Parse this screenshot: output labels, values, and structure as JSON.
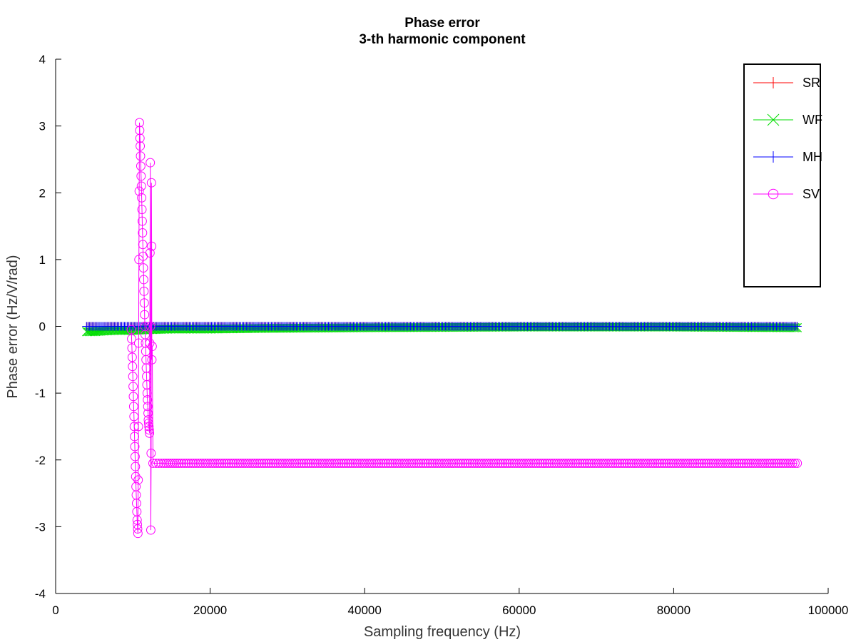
{
  "chart_data": {
    "type": "line",
    "title": "Phase error",
    "subtitle": "3-th harmonic component",
    "xlabel": "Sampling frequency (Hz)",
    "ylabel": "Phase error (Hz/V/rad)",
    "xlim": [
      0,
      100000
    ],
    "ylim": [
      -4,
      4
    ],
    "x_ticks": [
      "0",
      "20000",
      "40000",
      "60000",
      "80000",
      "100000"
    ],
    "y_ticks": [
      "-4",
      "-3",
      "-2",
      "-1",
      "0",
      "1",
      "2",
      "3",
      "4"
    ],
    "grid": false,
    "legend_position": "top-right",
    "series": [
      {
        "name": "SR",
        "color": "#ff0000",
        "marker": "plus",
        "x": [
          4000,
          10000,
          20000,
          40000,
          60000,
          80000,
          96000
        ],
        "y": [
          0,
          0,
          0,
          0,
          0,
          0,
          0
        ]
      },
      {
        "name": "WF",
        "color": "#00dd00",
        "marker": "cross",
        "x": [
          4000,
          5000,
          6000,
          8000,
          10000,
          12000,
          15000,
          20000,
          27000,
          40000,
          60000,
          80000,
          96000
        ],
        "y": [
          -0.08,
          -0.08,
          -0.07,
          -0.06,
          -0.06,
          -0.05,
          -0.04,
          -0.04,
          -0.03,
          -0.02,
          -0.01,
          -0.01,
          -0.02
        ]
      },
      {
        "name": "MH",
        "color": "#0000ff",
        "marker": "plus",
        "x": [
          4000,
          10000,
          20000,
          40000,
          60000,
          80000,
          96000
        ],
        "y": [
          0,
          0,
          0,
          0,
          0,
          0,
          0
        ]
      },
      {
        "name": "SV",
        "color": "#ff00ff",
        "marker": "circle",
        "x": [
          9800,
          9950,
          10100,
          10250,
          10400,
          10550,
          10650,
          10720,
          10780,
          10850,
          10950,
          11100,
          11250,
          11400,
          11550,
          11700,
          11850,
          12000,
          12150,
          12250,
          12280,
          12320,
          12360,
          12400,
          12430,
          12460,
          12500,
          12600,
          13000,
          14000,
          16000,
          20000,
          30000,
          40000,
          50000,
          60000,
          70000,
          80000,
          90000,
          96000
        ],
        "y": [
          -0.05,
          -0.6,
          -1.2,
          -1.8,
          -2.4,
          -2.9,
          -3.1,
          -1.5,
          1.0,
          3.05,
          2.7,
          2.1,
          1.4,
          0.7,
          0.0,
          -0.5,
          -1.0,
          -1.4,
          -1.6,
          2.45,
          0.0,
          -3.05,
          -1.9,
          2.15,
          1.2,
          -0.5,
          -0.3,
          -2.05,
          -2.05,
          -2.05,
          -2.05,
          -2.05,
          -2.05,
          -2.05,
          -2.05,
          -2.05,
          -2.05,
          -2.05,
          -2.05,
          -2.05
        ]
      }
    ]
  }
}
